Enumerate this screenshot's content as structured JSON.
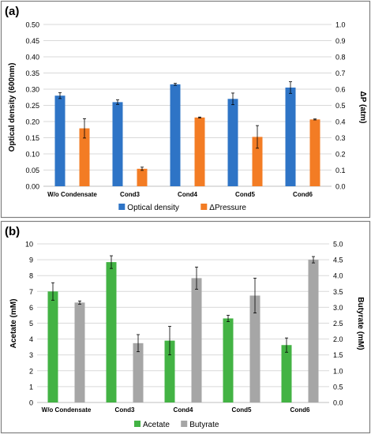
{
  "chart_data": [
    {
      "panel_label": "(a)",
      "type": "bar",
      "categories": [
        "W/o Condensate",
        "Cond3",
        "Cond4",
        "Cond5",
        "Cond6"
      ],
      "ylabel": "Optical density (600nm)",
      "y2label": "ΔP (atm)",
      "ylim": [
        0,
        0.5
      ],
      "y2lim": [
        0,
        1.0
      ],
      "yticks": [
        "0.00",
        "0.05",
        "0.10",
        "0.15",
        "0.20",
        "0.25",
        "0.30",
        "0.35",
        "0.40",
        "0.45",
        "0.50"
      ],
      "y2ticks": [
        "0.0",
        "0.1",
        "0.2",
        "0.3",
        "0.4",
        "0.5",
        "0.6",
        "0.7",
        "0.8",
        "0.9",
        "1.0"
      ],
      "grid": true,
      "legend_position": "bottom",
      "series": [
        {
          "name": "Optical density",
          "axis": "left",
          "color": "#2e74c6",
          "values": [
            0.28,
            0.26,
            0.315,
            0.27,
            0.305
          ],
          "errors": [
            0.009,
            0.007,
            0.003,
            0.018,
            0.018
          ]
        },
        {
          "name": "ΔPressure",
          "axis": "right",
          "color": "#f37c24",
          "values": [
            0.358,
            0.108,
            0.425,
            0.305,
            0.413
          ],
          "errors": [
            0.06,
            0.01,
            0.003,
            0.07,
            0.003
          ]
        }
      ]
    },
    {
      "panel_label": "(b)",
      "type": "bar",
      "categories": [
        "W/o Condensate",
        "Cond3",
        "Cond4",
        "Cond5",
        "Cond6"
      ],
      "ylabel": "Acetate (mM)",
      "y2label": "Butyrate (mM)",
      "ylim": [
        0,
        10
      ],
      "y2lim": [
        0,
        5.0
      ],
      "yticks": [
        "0",
        "1",
        "2",
        "3",
        "4",
        "5",
        "6",
        "7",
        "8",
        "9",
        "10"
      ],
      "y2ticks": [
        "0.0",
        "0.5",
        "1.0",
        "1.5",
        "2.0",
        "2.5",
        "3.0",
        "3.5",
        "4.0",
        "4.5",
        "5.0"
      ],
      "grid": true,
      "legend_position": "bottom",
      "series": [
        {
          "name": "Acetate",
          "axis": "left",
          "color": "#43b344",
          "values": [
            7.0,
            8.85,
            3.9,
            5.3,
            3.62
          ],
          "errors": [
            0.55,
            0.4,
            0.9,
            0.2,
            0.45
          ]
        },
        {
          "name": "Butyrate",
          "axis": "right",
          "color": "#a6a6a6",
          "values": [
            3.15,
            1.87,
            3.92,
            3.37,
            4.5
          ],
          "errors": [
            0.05,
            0.27,
            0.35,
            0.55,
            0.1
          ]
        }
      ]
    }
  ]
}
